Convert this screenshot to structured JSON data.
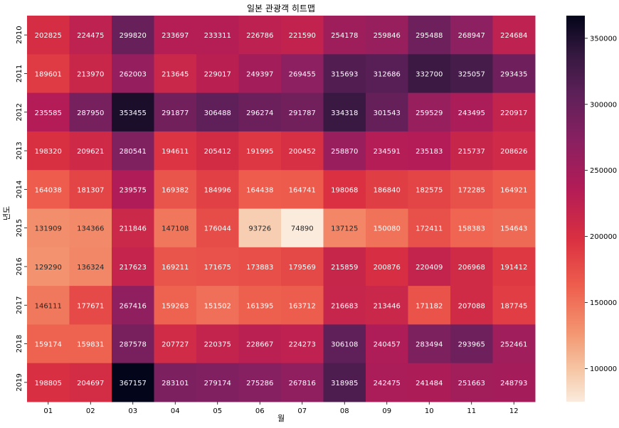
{
  "chart_data": {
    "type": "heatmap",
    "title": "일본 관광객 히트맵",
    "xlabel": "월",
    "ylabel": "년도",
    "x": [
      "01",
      "02",
      "03",
      "04",
      "05",
      "06",
      "07",
      "08",
      "09",
      "10",
      "11",
      "12"
    ],
    "y": [
      "2010",
      "2011",
      "2012",
      "2013",
      "2014",
      "2015",
      "2016",
      "2017",
      "2018",
      "2019"
    ],
    "values": [
      [
        202825,
        224475,
        299820,
        233697,
        233311,
        226786,
        221590,
        254178,
        259846,
        295488,
        268947,
        224684
      ],
      [
        189601,
        213970,
        262003,
        213645,
        229017,
        249397,
        269455,
        315693,
        312686,
        332700,
        325057,
        293435
      ],
      [
        235585,
        287950,
        353455,
        291877,
        306488,
        296274,
        291787,
        334318,
        301543,
        259529,
        243495,
        220917
      ],
      [
        198320,
        209621,
        280541,
        194611,
        205412,
        191995,
        200452,
        258870,
        234591,
        235183,
        215737,
        208626
      ],
      [
        164038,
        181307,
        239575,
        169382,
        184996,
        164438,
        164741,
        198068,
        186840,
        182575,
        172285,
        164921
      ],
      [
        131909,
        134366,
        211846,
        147108,
        176044,
        93726,
        74890,
        137125,
        150080,
        172411,
        158383,
        154643
      ],
      [
        129290,
        136324,
        217623,
        169211,
        171675,
        173883,
        179569,
        215859,
        200876,
        220409,
        206968,
        191412
      ],
      [
        146111,
        177671,
        267416,
        159263,
        151502,
        161395,
        163712,
        216683,
        213446,
        171182,
        207088,
        187745
      ],
      [
        159174,
        159831,
        287578,
        207727,
        220375,
        228667,
        224273,
        306108,
        240457,
        283494,
        293965,
        252461
      ],
      [
        198805,
        204697,
        367157,
        283101,
        279174,
        275286,
        267816,
        318985,
        242475,
        241484,
        251663,
        248793
      ]
    ],
    "colorbar": {
      "ticks": [
        100000,
        150000,
        200000,
        250000,
        300000,
        350000
      ],
      "range": [
        74890,
        367157
      ],
      "colormap": "rocket_r"
    }
  }
}
